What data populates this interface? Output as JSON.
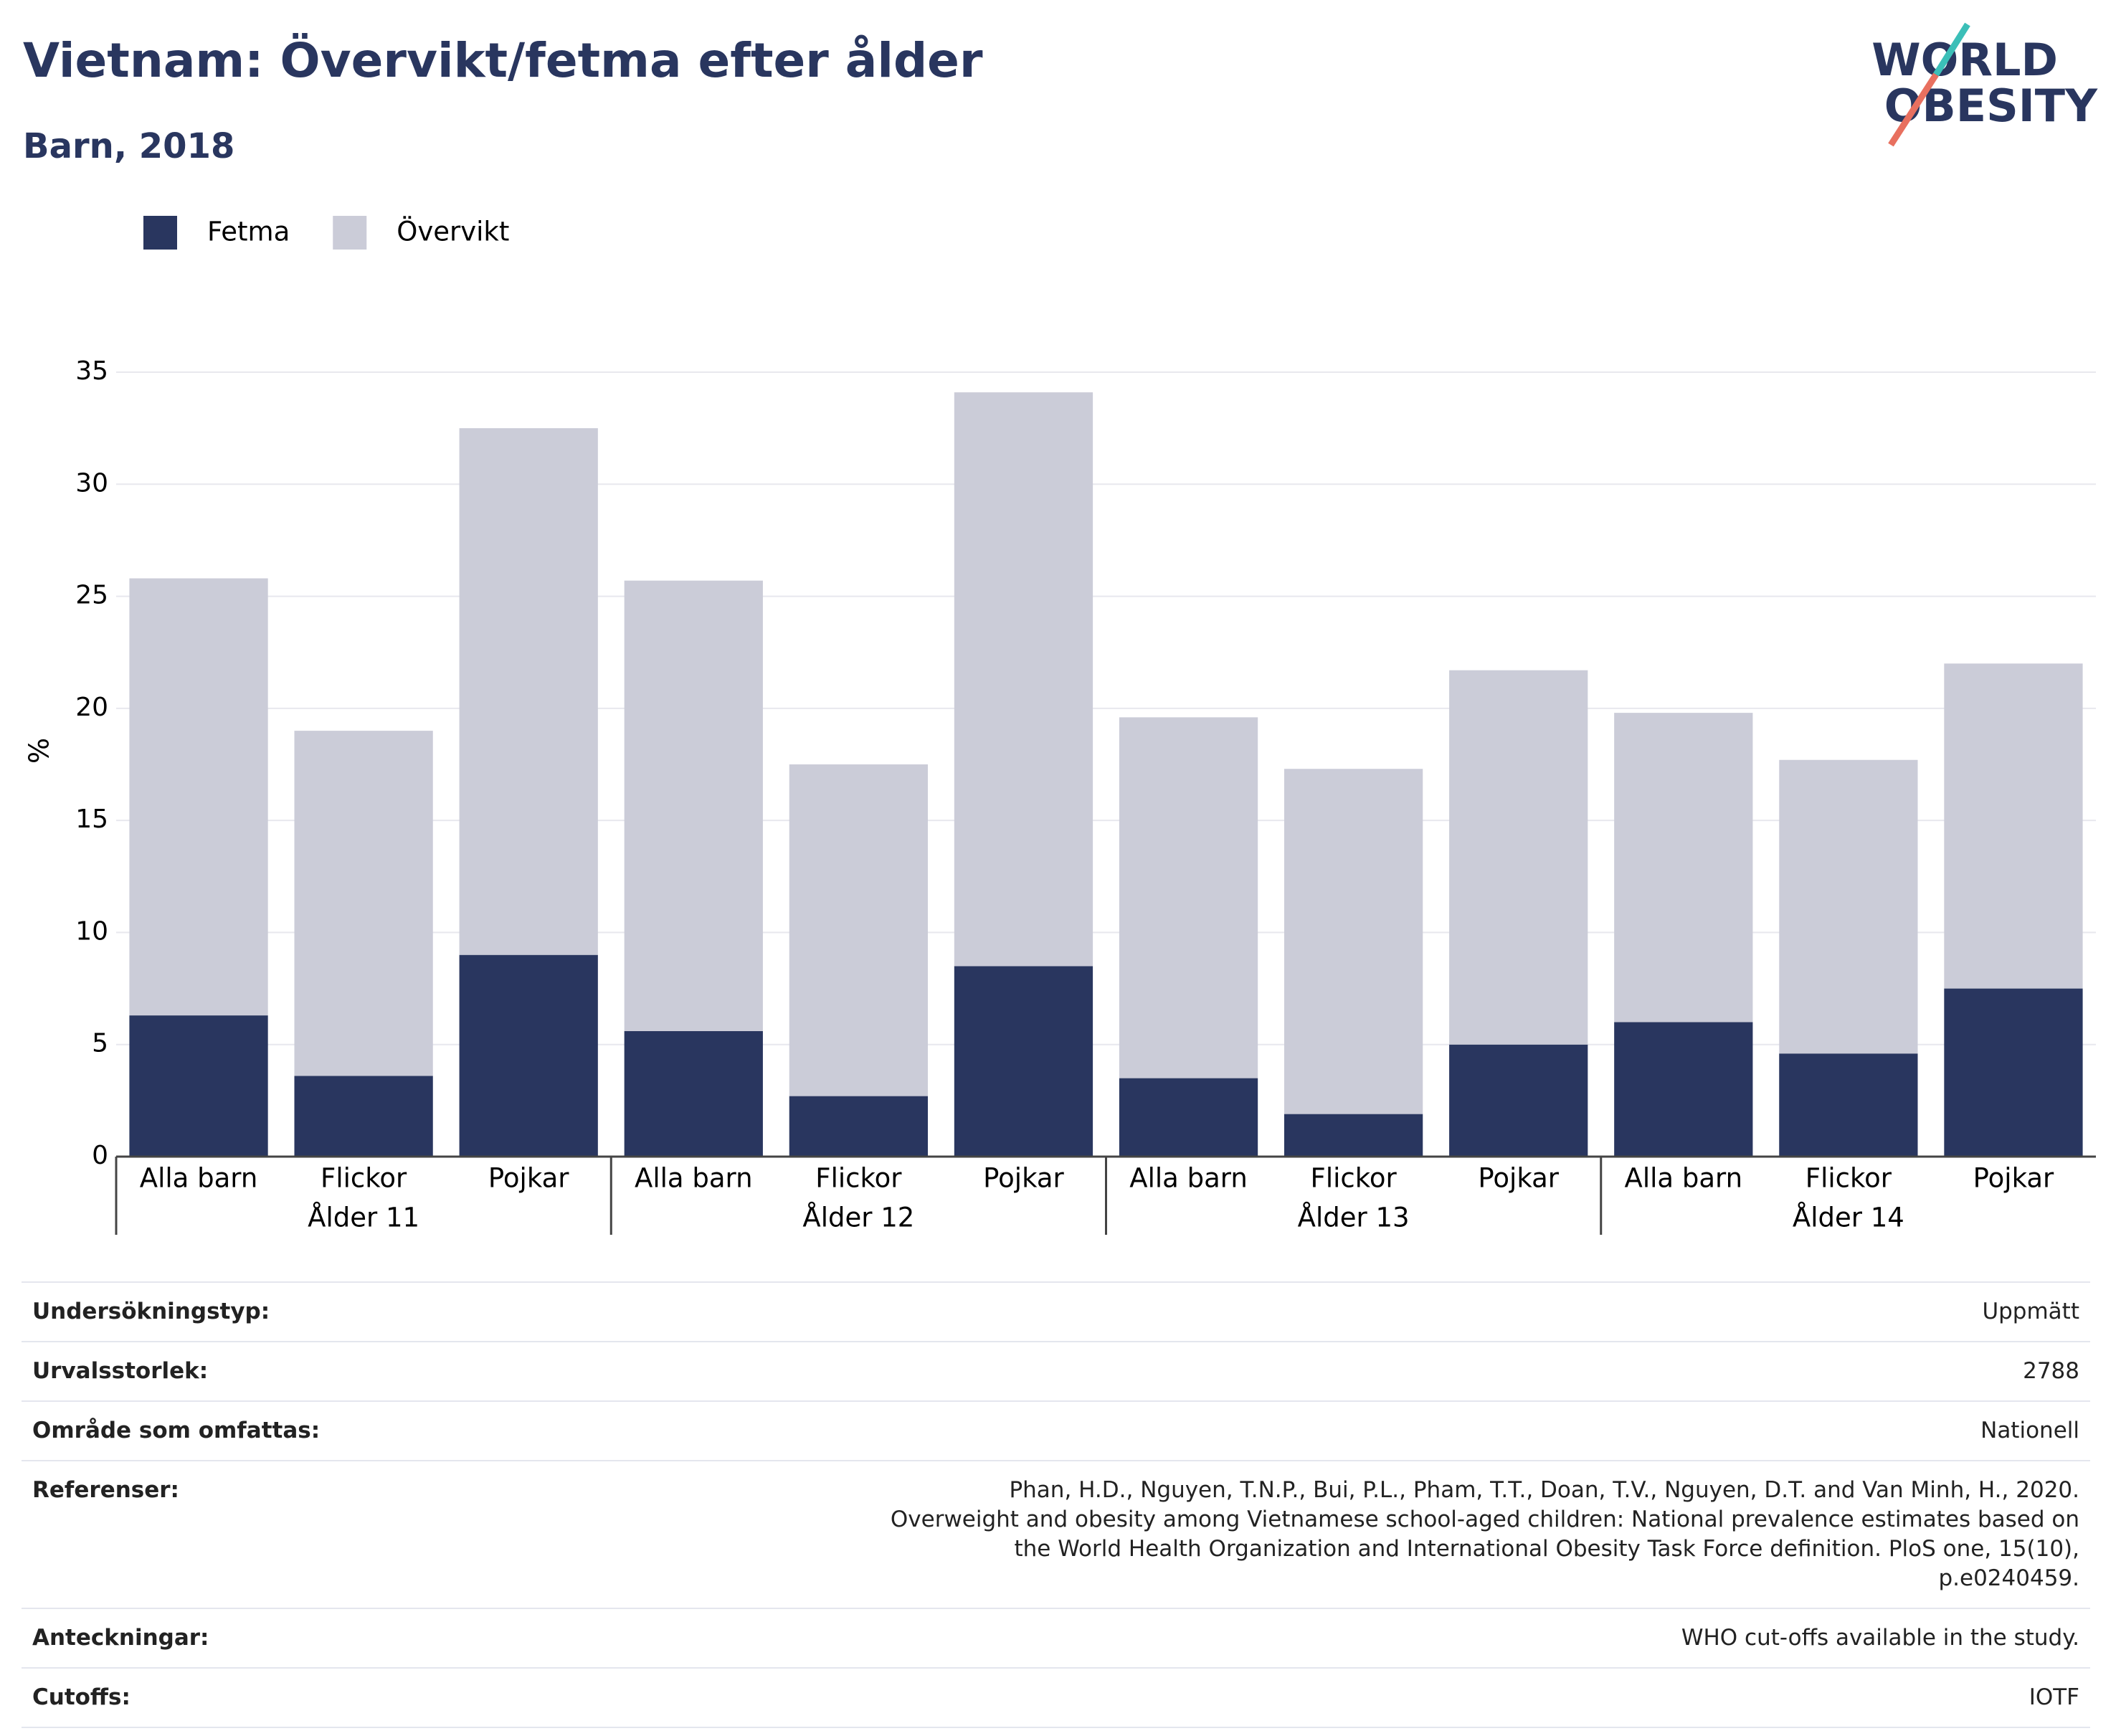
{
  "chart_data": {
    "type": "stacked_bar",
    "title": "Vietnam: Övervikt/fetma efter ålder",
    "subtitle": "Barn, 2018",
    "y_label": "%",
    "categories": [
      "Alla barn",
      "Flickor",
      "Pojkar",
      "Alla barn",
      "Flickor",
      "Pojkar",
      "Alla barn",
      "Flickor",
      "Pojkar",
      "Alla barn",
      "Flickor",
      "Pojkar"
    ],
    "groups": [
      "Ålder 11",
      "Ålder 12",
      "Ålder 13",
      "Ålder 14"
    ],
    "series": [
      {
        "name": "Fetma",
        "color": "#29365f",
        "values": [
          6.3,
          3.6,
          9,
          5.6,
          2.7,
          8.5,
          3.5,
          1.9,
          5,
          6,
          4.6,
          7.5
        ]
      },
      {
        "name": "Övervikt",
        "color": "#cbccd8",
        "values": [
          19.5,
          15.4,
          23.5,
          20.1,
          14.8,
          25.6,
          16.1,
          15.4,
          16.7,
          13.8,
          13.1,
          14.5
        ]
      }
    ],
    "ylim": [
      0,
      35
    ],
    "yticks": [
      0,
      5,
      10,
      15,
      20,
      25,
      30,
      35
    ],
    "grid": true
  },
  "logo": [
    "WORLD",
    "OBESITY"
  ],
  "table": {
    "rows": [
      [
        "Undersökningstyp:",
        "Uppmätt"
      ],
      [
        "Urvalsstorlek:",
        "2788"
      ],
      [
        "Område som omfattas:",
        "Nationell"
      ],
      [
        "Referenser:",
        "Phan, H.D., Nguyen, T.N.P., Bui, P.L., Pham, T.T., Doan, T.V., Nguyen, D.T. and Van Minh, H., 2020. Overweight and obesity among Vietnamese school-aged children: National prevalence estimates based on the World Health Organization and International Obesity Task Force definition. PloS one, 15(10), p.e0240459."
      ],
      [
        "Anteckningar:",
        "WHO cut-offs available in the study."
      ],
      [
        "Cutoffs:",
        "IOTF"
      ]
    ]
  }
}
